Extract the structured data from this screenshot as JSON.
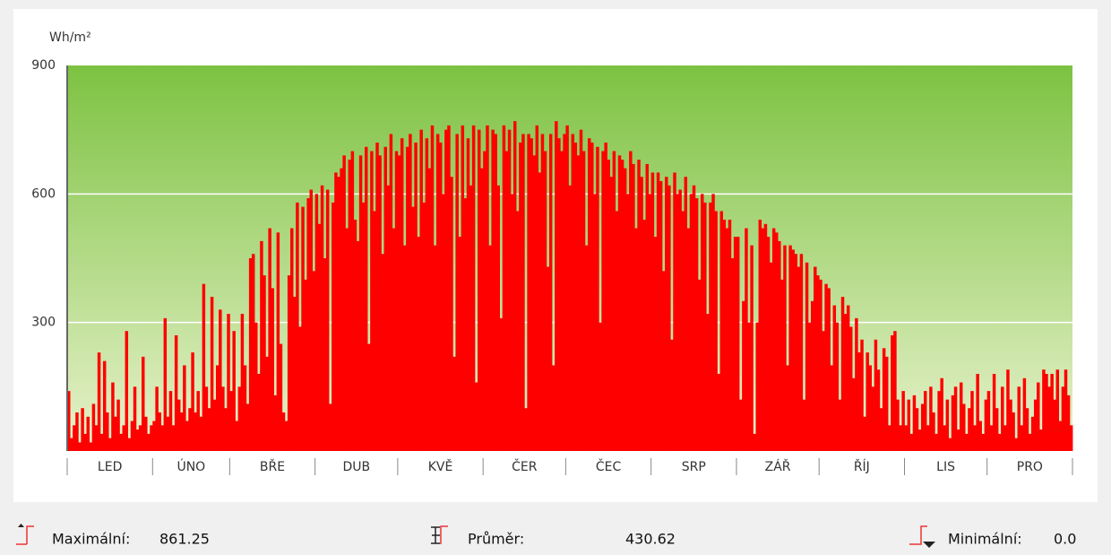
{
  "chart_data": {
    "type": "bar",
    "y_label": "Wh/m²",
    "color": "#ff0000",
    "ylim": [
      0,
      900
    ],
    "yticks": [
      300,
      600,
      900
    ],
    "grid": true,
    "months": [
      {
        "name": "LED",
        "values": [
          140,
          30,
          60,
          90,
          20,
          100,
          40,
          80,
          20,
          110,
          60,
          230,
          40,
          210,
          90,
          30,
          160,
          80,
          120,
          40,
          60,
          280,
          30,
          70,
          150,
          50,
          60,
          220,
          80,
          40,
          60
        ]
      },
      {
        "name": "ÚNO",
        "values": [
          70,
          150,
          90,
          60,
          310,
          80,
          140,
          60,
          270,
          120,
          90,
          200,
          70,
          100,
          230,
          90,
          140,
          80,
          390,
          150,
          100,
          360,
          120,
          200,
          330,
          150,
          100,
          320
        ]
      },
      {
        "name": "BŘE",
        "values": [
          140,
          280,
          70,
          150,
          320,
          200,
          110,
          450,
          460,
          300,
          180,
          490,
          410,
          220,
          520,
          380,
          130,
          510,
          250,
          90,
          70,
          410,
          520,
          360,
          580,
          290,
          570,
          400,
          590,
          610,
          420
        ]
      },
      {
        "name": "DUB",
        "values": [
          600,
          530,
          620,
          450,
          610,
          110,
          580,
          650,
          640,
          660,
          690,
          520,
          680,
          700,
          540,
          490,
          690,
          580,
          710,
          250,
          700,
          560,
          720,
          690,
          460,
          710,
          620,
          740,
          520,
          700
        ]
      },
      {
        "name": "KVĚ",
        "values": [
          690,
          730,
          480,
          710,
          740,
          570,
          720,
          500,
          750,
          580,
          730,
          660,
          760,
          480,
          740,
          720,
          600,
          750,
          760,
          640,
          220,
          740,
          500,
          760,
          590,
          730,
          620,
          760,
          160,
          750,
          660
        ]
      },
      {
        "name": "ČER",
        "values": [
          700,
          760,
          480,
          750,
          740,
          620,
          310,
          760,
          700,
          750,
          600,
          770,
          560,
          720,
          740,
          100,
          740,
          730,
          690,
          760,
          650,
          740,
          700,
          430,
          740,
          200,
          770,
          730,
          700,
          740
        ]
      },
      {
        "name": "ČEC",
        "values": [
          760,
          620,
          740,
          720,
          690,
          750,
          700,
          480,
          730,
          720,
          600,
          710,
          300,
          700,
          720,
          680,
          640,
          700,
          560,
          690,
          680,
          660,
          600,
          700,
          670,
          520,
          680,
          640,
          540,
          670,
          600
        ]
      },
      {
        "name": "SRP",
        "values": [
          650,
          500,
          650,
          630,
          420,
          640,
          620,
          260,
          650,
          600,
          610,
          560,
          640,
          520,
          600,
          620,
          590,
          400,
          600,
          580,
          320,
          580,
          600,
          560,
          180,
          560,
          540,
          520,
          540,
          450,
          500
        ]
      },
      {
        "name": "ZÁŘ",
        "values": [
          500,
          120,
          350,
          520,
          300,
          480,
          40,
          300,
          540,
          520,
          530,
          500,
          440,
          520,
          510,
          490,
          400,
          480,
          200,
          480,
          470,
          460,
          430,
          460,
          120,
          440,
          300,
          350,
          430,
          410
        ]
      },
      {
        "name": "ŘÍJ",
        "values": [
          400,
          280,
          390,
          380,
          200,
          340,
          300,
          120,
          360,
          320,
          340,
          290,
          170,
          310,
          230,
          260,
          80,
          230,
          200,
          150,
          260,
          190,
          100,
          240,
          220,
          60,
          270,
          280,
          120,
          60,
          140
        ]
      },
      {
        "name": "LIS",
        "values": [
          60,
          120,
          40,
          130,
          100,
          50,
          110,
          140,
          60,
          150,
          90,
          40,
          140,
          170,
          60,
          120,
          30,
          130,
          150,
          50,
          160,
          110,
          40,
          100,
          140,
          60,
          180,
          70,
          40,
          120
        ]
      },
      {
        "name": "PRO",
        "values": [
          140,
          60,
          180,
          100,
          40,
          150,
          60,
          190,
          120,
          90,
          30,
          150,
          60,
          170,
          100,
          40,
          80,
          120,
          160,
          50,
          190,
          180,
          150,
          180,
          120,
          190,
          70,
          150,
          190,
          130,
          60
        ]
      }
    ]
  },
  "stats": {
    "max": {
      "name": "Maximální:",
      "value": 861.25
    },
    "mean": {
      "name": "Průměr:",
      "value": 430.62
    },
    "min": {
      "name": "Minimální:",
      "value": {
        "value": 0,
        "label": "0.0"
      }
    }
  }
}
